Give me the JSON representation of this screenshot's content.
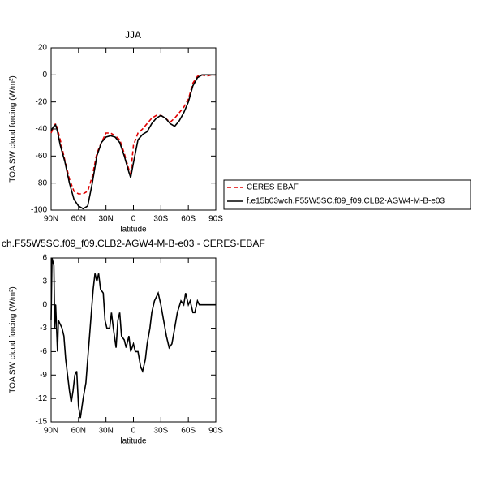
{
  "chart_data": [
    {
      "type": "line",
      "title": "JJA",
      "x_label": "latitude",
      "y_label": "TOA SW cloud forcing (W/m²)",
      "x": [
        90,
        87,
        85,
        83,
        80,
        75,
        70,
        65,
        60,
        55,
        50,
        45,
        40,
        35,
        30,
        25,
        20,
        15,
        10,
        5,
        3,
        0,
        -5,
        -10,
        -15,
        -20,
        -25,
        -30,
        -35,
        -40,
        -45,
        -50,
        -55,
        -60,
        -65,
        -70,
        -75,
        -80,
        -85,
        -90
      ],
      "xlim": [
        90,
        -90
      ],
      "xticks": [
        {
          "value": 90,
          "label": "90N"
        },
        {
          "value": 60,
          "label": "60N"
        },
        {
          "value": 30,
          "label": "30N"
        },
        0,
        {
          "value": -30,
          "label": "30S"
        },
        {
          "value": -60,
          "label": "60S"
        },
        {
          "value": -90,
          "label": "90S"
        }
      ],
      "ylim": [
        -100,
        20
      ],
      "yticks": [
        -100,
        -80,
        -60,
        -40,
        -20,
        0,
        20
      ],
      "legend": "right",
      "series": [
        {
          "name": "CERES-EBAF",
          "color": "#e00000",
          "linestyle": "dashed",
          "values": [
            -43,
            -38,
            -36,
            -40,
            -48,
            -63,
            -77,
            -86,
            -88,
            -88,
            -86,
            -75,
            -58,
            -50,
            -43,
            -43,
            -45,
            -48,
            -58,
            -70,
            -73,
            -52,
            -43,
            -40,
            -36,
            -32,
            -30,
            -30,
            -32,
            -35,
            -32,
            -28,
            -24,
            -18,
            -6,
            -1,
            0,
            -1,
            0,
            0
          ]
        },
        {
          "name": "f.e15b03wch.F55W5SC.f09_f09.CLB2-AGW4-M-B-e03",
          "color": "#000000",
          "linestyle": "solid",
          "values": [
            -41,
            -38,
            -37,
            -42,
            -52,
            -64,
            -80,
            -92,
            -97,
            -99,
            -97,
            -80,
            -60,
            -50,
            -46,
            -45,
            -46,
            -50,
            -60,
            -72,
            -76,
            -65,
            -48,
            -44,
            -42,
            -36,
            -32,
            -30,
            -32,
            -36,
            -38,
            -34,
            -28,
            -20,
            -8,
            -2,
            0,
            0,
            0,
            0
          ]
        }
      ]
    },
    {
      "type": "line",
      "title": "ch.F55W5SC.f09_f09.CLB2-AGW4-M-B-e03 - CERES-EBAF",
      "x_label": "latitude",
      "y_label": "TOA SW cloud forcing (W/m²)",
      "x": [
        90,
        89,
        87,
        86,
        85,
        83,
        82,
        80,
        78,
        76,
        74,
        72,
        70,
        68,
        66,
        64,
        62,
        60,
        58,
        55,
        52,
        50,
        48,
        46,
        44,
        42,
        40,
        38,
        36,
        33,
        31,
        29,
        26,
        24,
        22,
        19,
        17,
        15,
        13,
        10,
        8,
        5,
        3,
        0,
        -2,
        -5,
        -8,
        -10,
        -13,
        -15,
        -18,
        -20,
        -23,
        -25,
        -27,
        -30,
        -33,
        -36,
        -39,
        -42,
        -45,
        -48,
        -52,
        -55,
        -57,
        -60,
        -62,
        -65,
        -67,
        -70,
        -72,
        -75,
        -80,
        -85,
        -90
      ],
      "xlim": [
        90,
        -90
      ],
      "xticks": [
        {
          "value": 90,
          "label": "90N"
        },
        {
          "value": 60,
          "label": "60N"
        },
        {
          "value": 30,
          "label": "30N"
        },
        0,
        {
          "value": -30,
          "label": "30S"
        },
        {
          "value": -60,
          "label": "60S"
        },
        {
          "value": -90,
          "label": "90S"
        }
      ],
      "ylim": [
        -15,
        6
      ],
      "yticks": [
        -15,
        -12,
        -9,
        -6,
        -3,
        0,
        3,
        6
      ],
      "series": [
        {
          "color": "#000000",
          "linestyle": "solid",
          "values": [
            -2,
            6,
            5,
            -3,
            0,
            -6,
            -2,
            -2.5,
            -3,
            -4,
            -7,
            -9,
            -11,
            -12.5,
            -11,
            -9,
            -8.5,
            -13,
            -14.5,
            -12,
            -10,
            -7,
            -4,
            -1,
            2,
            4,
            3,
            4,
            2,
            1.5,
            -2,
            -3,
            -3,
            -1,
            -3,
            -5.5,
            -2,
            -1,
            -4,
            -4.5,
            -5.5,
            -4,
            -6,
            -5,
            -6,
            -6,
            -8,
            -8.5,
            -7,
            -5,
            -3,
            -1,
            0.5,
            1,
            1.5,
            0,
            -2,
            -4,
            -5.5,
            -5,
            -3,
            -1,
            0.5,
            0,
            1.5,
            0,
            0.5,
            -1,
            -1,
            0.5,
            0,
            0,
            0,
            0,
            0
          ]
        }
      ]
    }
  ]
}
